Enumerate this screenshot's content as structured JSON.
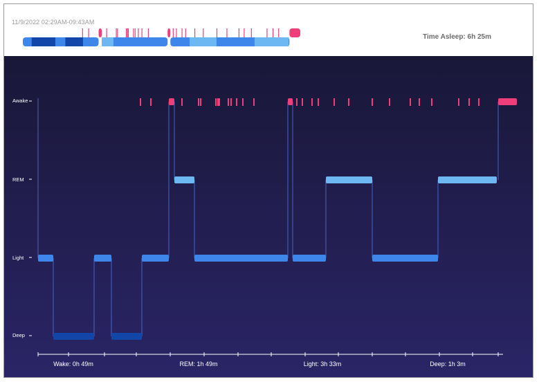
{
  "header": {
    "date_range": "11/9/2022 02:29AM-09:43AM",
    "time_asleep": "Time Asleep: 6h 25m"
  },
  "colors": {
    "awake": "#ee3f7a",
    "rem": "#6db7f3",
    "light": "#3f86ea",
    "deep": "#1246a8",
    "panel_top": "#191738",
    "panel_bottom": "#2a2566"
  },
  "chart_data": {
    "type": "step",
    "stages": [
      "Awake",
      "REM",
      "Light",
      "Deep"
    ],
    "segments": [
      {
        "stage": "Light",
        "start": 0.0,
        "end": 22.0
      },
      {
        "stage": "Deep",
        "start": 22.0,
        "end": 81.0
      },
      {
        "stage": "Light",
        "start": 81.0,
        "end": 106.0
      },
      {
        "stage": "Deep",
        "start": 106.0,
        "end": 150.0
      },
      {
        "stage": "Light",
        "start": 150.0,
        "end": 189.0
      },
      {
        "stage": "Awake",
        "start": 189.0,
        "end": 197.0
      },
      {
        "stage": "REM",
        "start": 197.0,
        "end": 226.0
      },
      {
        "stage": "Light",
        "start": 226.0,
        "end": 361.0
      },
      {
        "stage": "Awake",
        "start": 361.0,
        "end": 368.0
      },
      {
        "stage": "Light",
        "start": 368.0,
        "end": 416.0
      },
      {
        "stage": "REM",
        "start": 416.0,
        "end": 483.0
      },
      {
        "stage": "Light",
        "start": 483.0,
        "end": 578.0
      },
      {
        "stage": "REM",
        "start": 578.0,
        "end": 663.0
      },
      {
        "stage": "Awake",
        "start": 665.0,
        "end": 692.0
      }
    ],
    "awake_ticks": [
      148,
      163,
      208,
      232,
      235,
      257,
      260,
      262,
      275,
      279,
      287,
      296,
      312,
      374,
      382,
      396,
      405,
      428,
      449,
      483,
      508,
      538,
      551,
      569,
      608,
      623,
      637
    ],
    "timeline_total": 692,
    "summary": [
      {
        "label": "Wake: 0h 49m"
      },
      {
        "label": "REM: 1h 49m"
      },
      {
        "label": "Light: 3h 33m"
      },
      {
        "label": "Deep: 1h 3m"
      }
    ],
    "x_ticks": [
      0,
      44,
      96,
      142,
      191,
      240,
      289,
      337,
      386,
      434,
      483,
      531,
      580,
      628,
      665
    ]
  }
}
